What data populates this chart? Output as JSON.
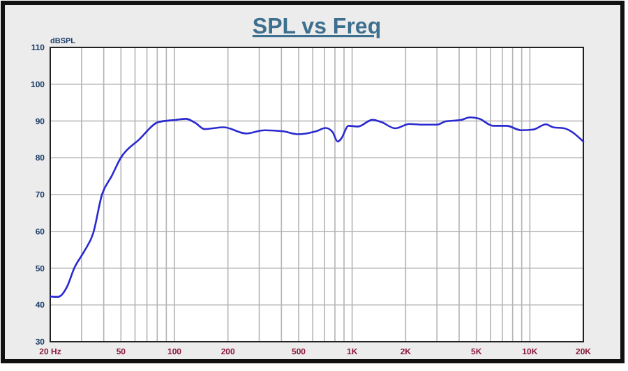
{
  "chart_data": {
    "type": "line",
    "title": "SPL vs Freq",
    "ylabel": "dBSPL",
    "log": "x",
    "grid": true,
    "marker": "none",
    "line_style": "solid",
    "xlim": [
      20,
      20000
    ],
    "ylim": [
      30,
      110
    ],
    "xticks": [
      {
        "value": 20,
        "label": "20  Hz"
      },
      {
        "value": 30,
        "label": null
      },
      {
        "value": 40,
        "label": null
      },
      50,
      {
        "value": 60,
        "label": null
      },
      {
        "value": 70,
        "label": null
      },
      {
        "value": 80,
        "label": null
      },
      {
        "value": 90,
        "label": null
      },
      100,
      200,
      {
        "value": 300,
        "label": null
      },
      {
        "value": 400,
        "label": null
      },
      500,
      {
        "value": 600,
        "label": null
      },
      {
        "value": 700,
        "label": null
      },
      {
        "value": 800,
        "label": null
      },
      {
        "value": 900,
        "label": null
      },
      {
        "value": 1000,
        "label": "1K"
      },
      {
        "value": 2000,
        "label": "2K"
      },
      {
        "value": 3000,
        "label": null
      },
      {
        "value": 4000,
        "label": null
      },
      {
        "value": 5000,
        "label": "5K"
      },
      {
        "value": 6000,
        "label": null
      },
      {
        "value": 7000,
        "label": null
      },
      {
        "value": 8000,
        "label": null
      },
      {
        "value": 9000,
        "label": null
      },
      {
        "value": 10000,
        "label": "10K"
      },
      {
        "value": 20000,
        "label": "20K"
      }
    ],
    "yticks": [
      30,
      40,
      50,
      60,
      70,
      80,
      90,
      100,
      110
    ],
    "x": [
      20,
      22.2,
      24.9,
      27.3,
      31.1,
      34.9,
      39.1,
      44.3,
      49.9,
      63.4,
      81.3,
      102,
      116,
      131,
      148,
      189,
      254,
      322,
      410,
      492,
      627,
      709,
      776,
      829,
      871,
      952,
      1078,
      1300,
      1460,
      1750,
      2100,
      2512,
      2990,
      3360,
      4100,
      4600,
      5200,
      6200,
      7400,
      8900,
      10500,
      12300,
      13500,
      15600,
      20000
    ],
    "series": [
      {
        "color": "#2a2ad0",
        "values": [
          42.3,
          42.2,
          45,
          50,
          54.6,
          59.5,
          70,
          75,
          80,
          85,
          89.7,
          90.3,
          90.6,
          89.5,
          87.8,
          88.3,
          86.6,
          87.5,
          87.2,
          86.4,
          87.2,
          88.1,
          87,
          84.4,
          85.3,
          88.7,
          88.5,
          90.3,
          89.7,
          88,
          89.2,
          89,
          89,
          89.9,
          90.3,
          91,
          90.6,
          88.7,
          88.7,
          87.5,
          87.7,
          89.1,
          88.3,
          88,
          84.4
        ]
      }
    ]
  }
}
